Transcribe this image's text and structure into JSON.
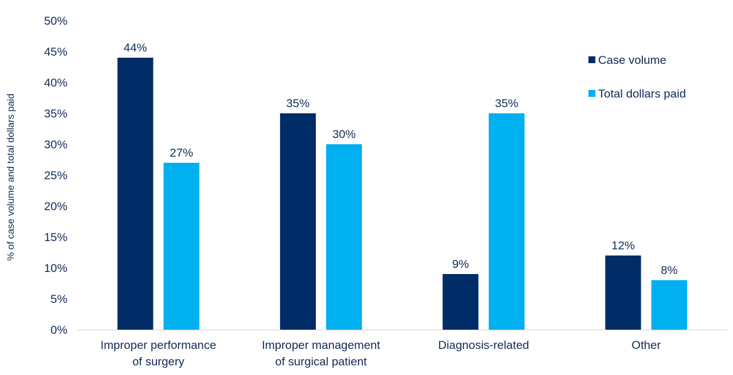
{
  "chart_data": {
    "type": "bar",
    "ylabel": "% of case volume and total dollars paid",
    "ylim": [
      0,
      50
    ],
    "yticks": [
      "0%",
      "5%",
      "10%",
      "15%",
      "20%",
      "25%",
      "30%",
      "35%",
      "40%",
      "45%",
      "50%"
    ],
    "categories": [
      [
        "Improper performance",
        "of surgery"
      ],
      [
        "Improper management",
        "of surgical patient"
      ],
      [
        "Diagnosis-related"
      ],
      [
        "Other"
      ]
    ],
    "series": [
      {
        "name": "Case volume",
        "color": "#002d67",
        "values": [
          44,
          35,
          9,
          12
        ],
        "labels": [
          "44%",
          "35%",
          "9%",
          "12%"
        ]
      },
      {
        "name": "Total dollars paid",
        "color": "#00b0f0",
        "values": [
          27,
          30,
          35,
          8
        ],
        "labels": [
          "27%",
          "30%",
          "35%",
          "8%"
        ]
      }
    ],
    "legend_position": "top-right",
    "grid": false
  }
}
